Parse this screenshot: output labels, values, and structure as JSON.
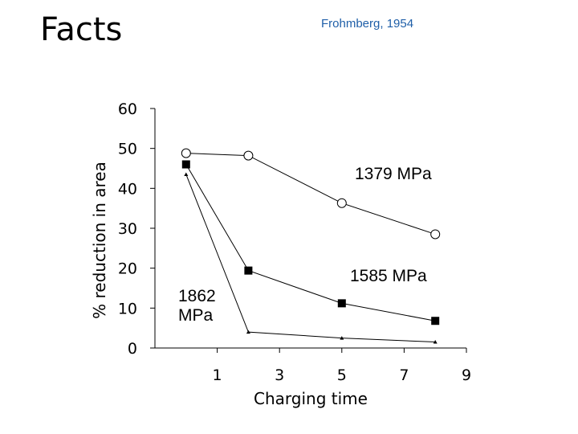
{
  "slide": {
    "title": "Facts",
    "citation": "Frohmberg, 1954"
  },
  "chart_data": {
    "type": "line",
    "xlabel": "Charging time",
    "ylabel": "% reduction in area",
    "xlim": [
      -1,
      9
    ],
    "ylim": [
      0,
      60
    ],
    "xticks": [
      1,
      3,
      5,
      7,
      9
    ],
    "yticks": [
      0,
      10,
      20,
      30,
      40,
      50,
      60
    ],
    "grid": false,
    "legend": "none",
    "series": [
      {
        "name": "1379 MPa",
        "label_lines": [
          "1379 MPa"
        ],
        "marker": "open-circle",
        "color": "#000000",
        "x": [
          0,
          2,
          5,
          8
        ],
        "y": [
          48.8,
          48.2,
          36.3,
          28.5
        ]
      },
      {
        "name": "1585 MPa",
        "label_lines": [
          "1585 MPa"
        ],
        "marker": "filled-square",
        "color": "#000000",
        "x": [
          0,
          2,
          5,
          8
        ],
        "y": [
          46.0,
          19.4,
          11.2,
          6.8
        ]
      },
      {
        "name": "1862 MPa",
        "label_lines": [
          "1862",
          "MPa"
        ],
        "marker": "small-triangle",
        "color": "#000000",
        "x": [
          0,
          2,
          5,
          8
        ],
        "y": [
          43.5,
          4.0,
          2.5,
          1.5
        ]
      }
    ]
  }
}
